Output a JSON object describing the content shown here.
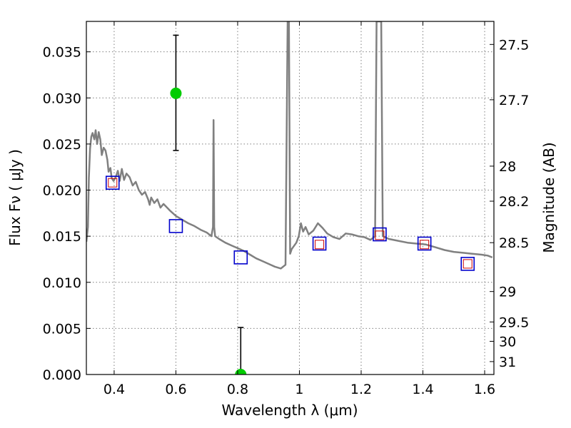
{
  "chart_data": {
    "type": "line",
    "title": "",
    "xlabel": "Wavelength  λ (μm)",
    "ylabel": "Flux  Fν  ( μJy )",
    "ylabel_right": "Magnitude (AB)",
    "xlim": [
      0.31,
      1.63
    ],
    "ylim": [
      0.0,
      0.0383
    ],
    "grid": true,
    "x_ticks": [
      0.4,
      0.6,
      0.8,
      1.0,
      1.2,
      1.4,
      1.6
    ],
    "x_tick_labels": [
      "0.4",
      "0.6",
      "0.8",
      "1",
      "1.2",
      "1.4",
      "1.6"
    ],
    "y_ticks": [
      0.0,
      0.005,
      0.01,
      0.015,
      0.02,
      0.025,
      0.03,
      0.035
    ],
    "y_tick_labels": [
      "0.000",
      "0.005",
      "0.010",
      "0.015",
      "0.020",
      "0.025",
      "0.030",
      "0.035"
    ],
    "right_ticks": [
      {
        "label": "27.5",
        "flux": 0.0358
      },
      {
        "label": "27.7",
        "flux": 0.0298
      },
      {
        "label": "28",
        "flux": 0.0226
      },
      {
        "label": "28.2",
        "flux": 0.0188
      },
      {
        "label": "28.5",
        "flux": 0.0143
      },
      {
        "label": "29",
        "flux": 0.009
      },
      {
        "label": "29.5",
        "flux": 0.0057
      },
      {
        "label": "30",
        "flux": 0.0036
      },
      {
        "label": "31",
        "flux": 0.0014
      }
    ],
    "series": [
      {
        "name": "model_sed",
        "style": "line",
        "color": "#808080",
        "points": [
          [
            0.31,
            0.0144
          ],
          [
            0.315,
            0.016
          ],
          [
            0.318,
            0.0213
          ],
          [
            0.322,
            0.0245
          ],
          [
            0.326,
            0.0258
          ],
          [
            0.33,
            0.0262
          ],
          [
            0.336,
            0.0255
          ],
          [
            0.34,
            0.0265
          ],
          [
            0.345,
            0.025
          ],
          [
            0.35,
            0.0263
          ],
          [
            0.355,
            0.0255
          ],
          [
            0.36,
            0.0238
          ],
          [
            0.366,
            0.0246
          ],
          [
            0.372,
            0.0243
          ],
          [
            0.378,
            0.0233
          ],
          [
            0.382,
            0.022
          ],
          [
            0.388,
            0.0224
          ],
          [
            0.392,
            0.0213
          ],
          [
            0.398,
            0.021
          ],
          [
            0.405,
            0.0214
          ],
          [
            0.412,
            0.0221
          ],
          [
            0.418,
            0.021
          ],
          [
            0.425,
            0.0223
          ],
          [
            0.432,
            0.0211
          ],
          [
            0.44,
            0.0218
          ],
          [
            0.45,
            0.0214
          ],
          [
            0.46,
            0.0205
          ],
          [
            0.47,
            0.0209
          ],
          [
            0.48,
            0.02
          ],
          [
            0.49,
            0.0195
          ],
          [
            0.5,
            0.0198
          ],
          [
            0.51,
            0.019
          ],
          [
            0.515,
            0.0184
          ],
          [
            0.52,
            0.0192
          ],
          [
            0.53,
            0.0186
          ],
          [
            0.54,
            0.019
          ],
          [
            0.55,
            0.0181
          ],
          [
            0.56,
            0.0185
          ],
          [
            0.58,
            0.0178
          ],
          [
            0.6,
            0.0172
          ],
          [
            0.62,
            0.0168
          ],
          [
            0.64,
            0.0164
          ],
          [
            0.66,
            0.0161
          ],
          [
            0.68,
            0.0157
          ],
          [
            0.7,
            0.0154
          ],
          [
            0.715,
            0.015
          ],
          [
            0.72,
            0.016
          ],
          [
            0.722,
            0.0276
          ],
          [
            0.724,
            0.016
          ],
          [
            0.727,
            0.015
          ],
          [
            0.74,
            0.0147
          ],
          [
            0.76,
            0.0143
          ],
          [
            0.78,
            0.014
          ],
          [
            0.8,
            0.0137
          ],
          [
            0.82,
            0.0134
          ],
          [
            0.84,
            0.013
          ],
          [
            0.86,
            0.0126
          ],
          [
            0.88,
            0.0123
          ],
          [
            0.9,
            0.012
          ],
          [
            0.92,
            0.0117
          ],
          [
            0.94,
            0.0115
          ],
          [
            0.955,
            0.0119
          ],
          [
            0.962,
            0.0383
          ],
          [
            0.966,
            0.0383
          ],
          [
            0.97,
            0.0131
          ],
          [
            0.975,
            0.0136
          ],
          [
            0.99,
            0.0143
          ],
          [
            0.998,
            0.015
          ],
          [
            1.005,
            0.0164
          ],
          [
            1.012,
            0.0155
          ],
          [
            1.02,
            0.016
          ],
          [
            1.03,
            0.0152
          ],
          [
            1.045,
            0.0156
          ],
          [
            1.06,
            0.0164
          ],
          [
            1.075,
            0.0159
          ],
          [
            1.09,
            0.0153
          ],
          [
            1.11,
            0.0149
          ],
          [
            1.13,
            0.0147
          ],
          [
            1.15,
            0.0153
          ],
          [
            1.17,
            0.0152
          ],
          [
            1.19,
            0.015
          ],
          [
            1.21,
            0.0149
          ],
          [
            1.23,
            0.0146
          ],
          [
            1.245,
            0.015
          ],
          [
            1.25,
            0.0383
          ],
          [
            1.265,
            0.0383
          ],
          [
            1.27,
            0.015
          ],
          [
            1.29,
            0.0147
          ],
          [
            1.32,
            0.0145
          ],
          [
            1.35,
            0.0143
          ],
          [
            1.38,
            0.0142
          ],
          [
            1.41,
            0.0141
          ],
          [
            1.44,
            0.0138
          ],
          [
            1.47,
            0.0135
          ],
          [
            1.5,
            0.0133
          ],
          [
            1.53,
            0.0132
          ],
          [
            1.56,
            0.0131
          ],
          [
            1.59,
            0.013
          ],
          [
            1.61,
            0.0129
          ],
          [
            1.625,
            0.0127
          ]
        ]
      },
      {
        "name": "observed_photometry",
        "style": "open-square",
        "color": "#0000cc",
        "x": [
          0.395,
          0.6,
          0.81,
          1.065,
          1.26,
          1.405,
          1.545
        ],
        "y": [
          0.0208,
          0.0161,
          0.0127,
          0.0142,
          0.0152,
          0.0142,
          0.012
        ]
      },
      {
        "name": "model_photometry",
        "style": "small-open-square",
        "color": "#cc0000",
        "x": [
          0.395,
          1.065,
          1.26,
          1.405,
          1.545
        ],
        "y": [
          0.0208,
          0.0141,
          0.0151,
          0.0141,
          0.012
        ]
      },
      {
        "name": "extra_points",
        "style": "filled-circle-errorbar",
        "color": "#00cc00",
        "points": [
          {
            "x": 0.6,
            "y": 0.0305,
            "low": 0.0243,
            "high": 0.0368
          },
          {
            "x": 0.81,
            "y": 0.0,
            "low": 0.0,
            "high": 0.0051
          }
        ]
      }
    ]
  }
}
